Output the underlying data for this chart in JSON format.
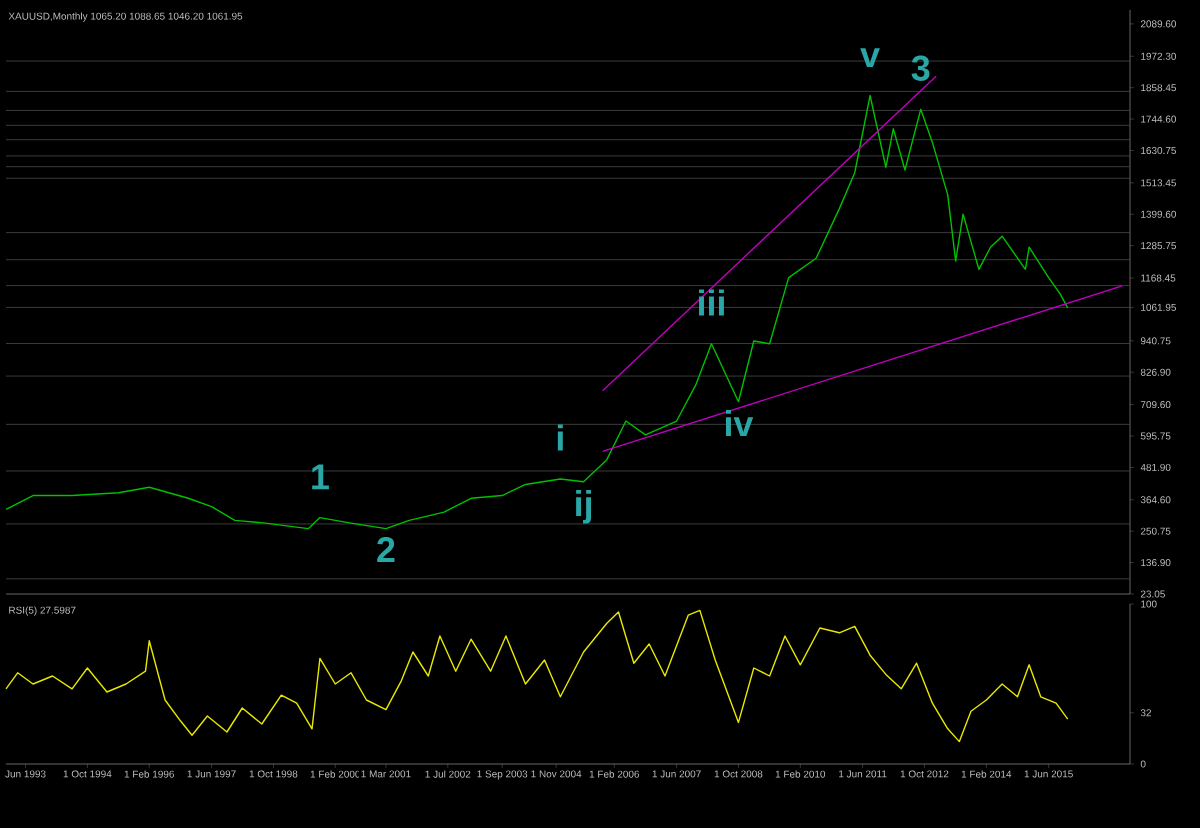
{
  "chart_data": [
    {
      "type": "line",
      "title": "XAUUSD,Monthly  1065.20 1088.65 1046.20 1061.95",
      "xlim": [
        "1993-01",
        "2017-03"
      ],
      "ylim": [
        23.05,
        2140
      ],
      "yticks": [
        {
          "value": 23.05,
          "label": "23.05"
        },
        {
          "value": 136.9,
          "label": "136.90"
        },
        {
          "value": 250.75,
          "label": "250.75"
        },
        {
          "value": 364.6,
          "label": "364.60"
        },
        {
          "value": 481.9,
          "label": "481.90"
        },
        {
          "value": 595.75,
          "label": "595.75"
        },
        {
          "value": 709.6,
          "label": "709.60"
        },
        {
          "value": 826.9,
          "label": "826.90"
        },
        {
          "value": 940.75,
          "label": "940.75"
        },
        {
          "value": 1061.95,
          "label": "1061.95"
        },
        {
          "value": 1168.45,
          "label": "1168.45"
        },
        {
          "value": 1285.75,
          "label": "1285.75"
        },
        {
          "value": 1399.6,
          "label": "1399.60"
        },
        {
          "value": 1513.45,
          "label": "1513.45"
        },
        {
          "value": 1630.75,
          "label": "1630.75"
        },
        {
          "value": 1744.6,
          "label": "1744.60"
        },
        {
          "value": 1858.45,
          "label": "1858.45"
        },
        {
          "value": 1972.3,
          "label": "1972.30"
        },
        {
          "value": 2089.6,
          "label": "2089.60"
        }
      ],
      "series": [
        {
          "color": "#00c000",
          "x": [
            "1993-01",
            "1993-08",
            "1994-06",
            "1995-06",
            "1996-02",
            "1996-12",
            "1997-06",
            "1997-12",
            "1998-08",
            "1999-07",
            "1999-10",
            "2000-06",
            "2001-03",
            "2001-09",
            "2002-06",
            "2003-01",
            "2003-09",
            "2004-03",
            "2004-12",
            "2005-06",
            "2005-12",
            "2006-05",
            "2006-10",
            "2007-06",
            "2007-11",
            "2008-03",
            "2008-10",
            "2009-02",
            "2009-06",
            "2009-11",
            "2010-06",
            "2010-12",
            "2011-04",
            "2011-08",
            "2011-12",
            "2012-02",
            "2012-05",
            "2012-09",
            "2012-12",
            "2013-04",
            "2013-06",
            "2013-08",
            "2013-12",
            "2014-03",
            "2014-06",
            "2014-12",
            "2015-01",
            "2015-06",
            "2015-09",
            "2015-11"
          ],
          "values": [
            330,
            380,
            380,
            390,
            410,
            370,
            340,
            290,
            280,
            260,
            300,
            280,
            260,
            290,
            320,
            370,
            380,
            420,
            440,
            430,
            510,
            650,
            600,
            650,
            780,
            930,
            720,
            940,
            930,
            1170,
            1240,
            1420,
            1550,
            1830,
            1570,
            1710,
            1560,
            1780,
            1660,
            1470,
            1230,
            1400,
            1200,
            1280,
            1320,
            1200,
            1280,
            1170,
            1110,
            1060
          ]
        },
        {
          "color": "#c000c0",
          "x": [
            "2005-11",
            "2013-01"
          ],
          "values": [
            760,
            1900
          ]
        },
        {
          "color": "#c000c0",
          "x": [
            "2005-11",
            "2017-01"
          ],
          "values": [
            540,
            1140
          ]
        }
      ],
      "ref_lines": [
        {
          "axis": "y",
          "value": 1955
        },
        {
          "axis": "y",
          "value": 1845
        },
        {
          "axis": "y",
          "value": 1776
        },
        {
          "axis": "y",
          "value": 1722
        },
        {
          "axis": "y",
          "value": 1670
        },
        {
          "axis": "y",
          "value": 1611
        },
        {
          "axis": "y",
          "value": 1572
        },
        {
          "axis": "y",
          "value": 1530
        },
        {
          "axis": "y",
          "value": 1333
        },
        {
          "axis": "y",
          "value": 1235
        },
        {
          "axis": "y",
          "value": 1141
        },
        {
          "axis": "y",
          "value": 1061.95
        },
        {
          "axis": "y",
          "value": 931
        },
        {
          "axis": "y",
          "value": 813
        },
        {
          "axis": "y",
          "value": 638
        },
        {
          "axis": "y",
          "value": 469
        },
        {
          "axis": "y",
          "value": 277
        },
        {
          "axis": "y",
          "value": 78
        }
      ],
      "annotations": [
        {
          "text": "1",
          "x": "1999-10",
          "y": 300
        },
        {
          "text": "2",
          "x": "2001-03",
          "y": 260
        },
        {
          "text": "i",
          "x": "2004-12",
          "y": 440
        },
        {
          "text": "ij",
          "x": "2005-06",
          "y": 430
        },
        {
          "text": "iii",
          "x": "2008-03",
          "y": 930
        },
        {
          "text": "iv",
          "x": "2008-10",
          "y": 720
        },
        {
          "text": "v",
          "x": "2011-08",
          "y": 1830
        },
        {
          "text": "3",
          "x": "2012-09",
          "y": 1780
        }
      ]
    },
    {
      "type": "line",
      "title": "RSI(5) 27.5987",
      "xlim": [
        "1993-01",
        "2017-03"
      ],
      "ylim": [
        0,
        100
      ],
      "yticks": [
        0,
        32,
        100
      ],
      "xticks": [
        {
          "value": "1993-06",
          "label": "Jun 1993"
        },
        {
          "value": "1994-10",
          "label": "1 Oct 1994"
        },
        {
          "value": "1996-02",
          "label": "1 Feb 1996"
        },
        {
          "value": "1997-06",
          "label": "1 Jun 1997"
        },
        {
          "value": "1998-10",
          "label": "1 Oct 1998"
        },
        {
          "value": "2000-02",
          "label": "1 Feb 2000"
        },
        {
          "value": "2001-03",
          "label": "1 Mar 2001"
        },
        {
          "value": "2002-07",
          "label": "1 Jul 2002"
        },
        {
          "value": "2003-09",
          "label": "1 Sep 2003"
        },
        {
          "value": "2004-11",
          "label": "1 Nov 2004"
        },
        {
          "value": "2006-02",
          "label": "1 Feb 2006"
        },
        {
          "value": "2007-06",
          "label": "1 Jun 2007"
        },
        {
          "value": "2008-10",
          "label": "1 Oct 2008"
        },
        {
          "value": "2010-02",
          "label": "1 Feb 2010"
        },
        {
          "value": "2011-06",
          "label": "1 Jun 2011"
        },
        {
          "value": "2012-10",
          "label": "1 Oct 2012"
        },
        {
          "value": "2014-02",
          "label": "1 Feb 2014"
        },
        {
          "value": "2015-06",
          "label": "1 Jun 2015"
        }
      ],
      "series": [
        {
          "color": "#e8e800",
          "x": [
            "1993-01",
            "1993-04",
            "1993-08",
            "1994-01",
            "1994-06",
            "1994-10",
            "1995-03",
            "1995-08",
            "1996-01",
            "1996-02",
            "1996-06",
            "1996-10",
            "1997-01",
            "1997-05",
            "1997-10",
            "1998-02",
            "1998-07",
            "1998-12",
            "1999-04",
            "1999-08",
            "1999-10",
            "2000-02",
            "2000-06",
            "2000-10",
            "2001-03",
            "2001-07",
            "2001-10",
            "2002-02",
            "2002-05",
            "2002-09",
            "2003-01",
            "2003-06",
            "2003-10",
            "2004-03",
            "2004-08",
            "2004-12",
            "2005-06",
            "2005-12",
            "2006-03",
            "2006-07",
            "2006-11",
            "2007-03",
            "2007-09",
            "2007-12",
            "2008-04",
            "2008-10",
            "2009-02",
            "2009-06",
            "2009-10",
            "2010-02",
            "2010-07",
            "2010-12",
            "2011-04",
            "2011-08",
            "2011-12",
            "2012-04",
            "2012-08",
            "2012-12",
            "2013-04",
            "2013-07",
            "2013-10",
            "2014-02",
            "2014-06",
            "2014-10",
            "2015-01",
            "2015-04",
            "2015-08",
            "2015-11"
          ],
          "values": [
            47,
            57,
            50,
            55,
            47,
            60,
            45,
            50,
            58,
            77,
            40,
            27,
            18,
            30,
            20,
            35,
            25,
            43,
            38,
            22,
            66,
            50,
            57,
            40,
            34,
            52,
            70,
            55,
            80,
            58,
            78,
            58,
            80,
            50,
            65,
            42,
            70,
            88,
            95,
            63,
            75,
            55,
            93,
            96,
            65,
            26,
            60,
            55,
            80,
            62,
            85,
            82,
            86,
            68,
            56,
            47,
            63,
            38,
            22,
            14,
            33,
            40,
            50,
            42,
            62,
            42,
            38,
            28
          ]
        }
      ]
    }
  ]
}
